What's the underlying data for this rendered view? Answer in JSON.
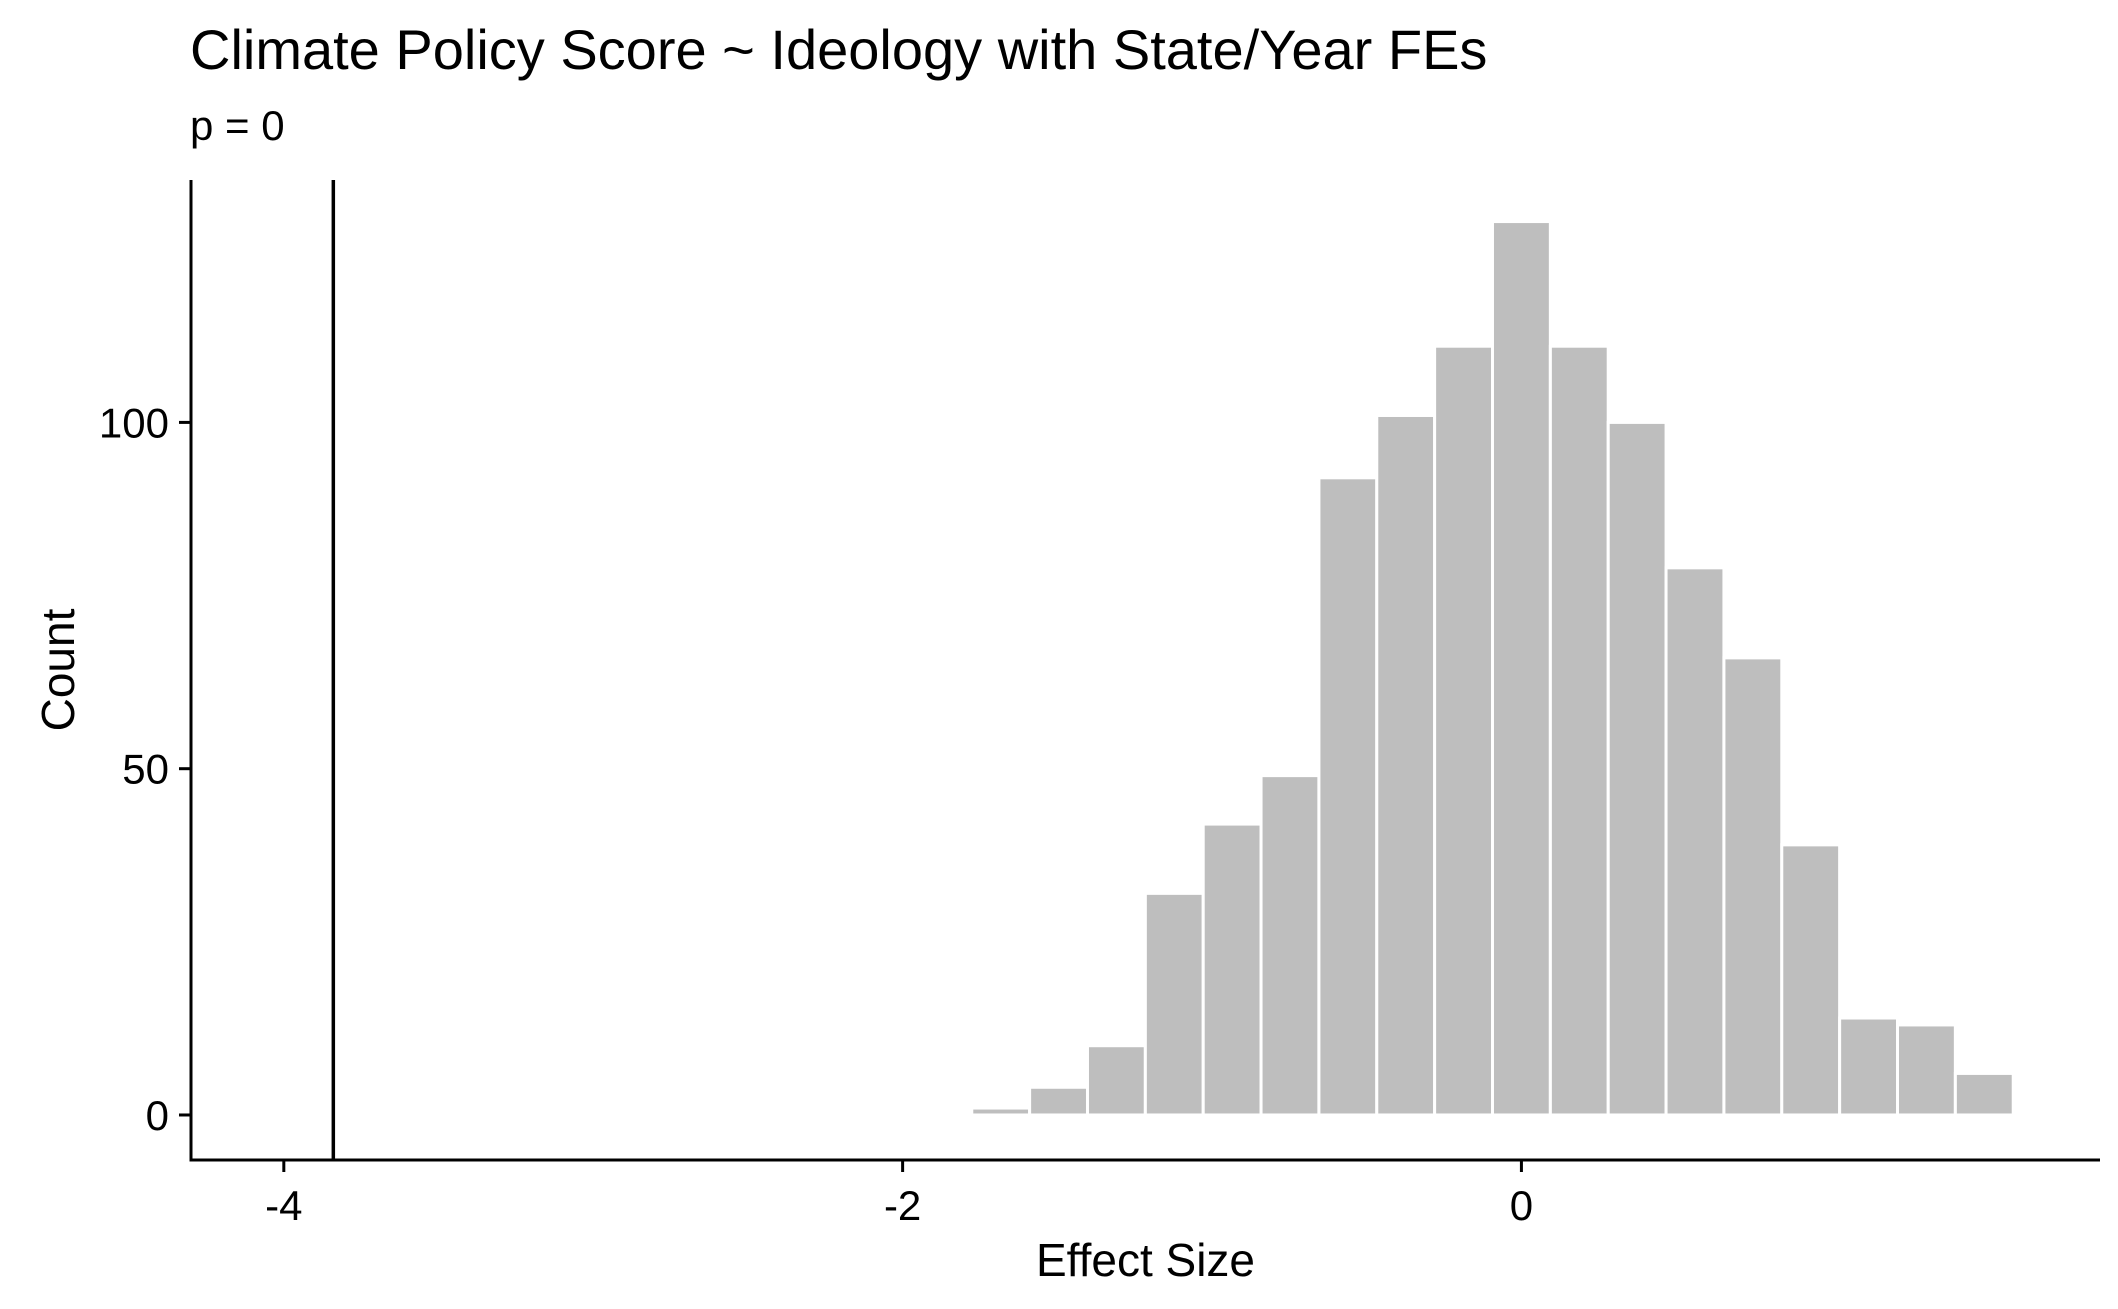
{
  "chart_data": {
    "type": "bar",
    "title": "Climate Policy Score ~ Ideology with State/Year FEs",
    "subtitle": "p = 0",
    "xlabel": "Effect Size",
    "ylabel": "Count",
    "xlim": [
      -4.3,
      1.87
    ],
    "ylim": [
      -6.5,
      135
    ],
    "x_ticks": [
      -4,
      -2,
      0
    ],
    "x_tick_labels": [
      "-4",
      "-2",
      "0"
    ],
    "y_ticks": [
      0,
      50,
      100
    ],
    "y_tick_labels": [
      "0",
      "50",
      "100"
    ],
    "bin_width": 0.187,
    "bin_centers": [
      -1.87,
      -1.683,
      -1.496,
      -1.309,
      -1.122,
      -0.935,
      -0.748,
      -0.561,
      -0.374,
      -0.187,
      0.0,
      0.187,
      0.374,
      0.561,
      0.748,
      0.935,
      1.122,
      1.309,
      1.496
    ],
    "values": [
      0,
      1,
      4,
      10,
      32,
      42,
      49,
      92,
      101,
      111,
      129,
      111,
      100,
      79,
      66,
      39,
      14,
      13,
      6
    ],
    "observed_value": -3.84,
    "grid": false,
    "colors": {
      "bar_fill": "#bebebe",
      "bar_outline": "#ffffff",
      "axis": "#000000",
      "reference_line": "#000000"
    }
  }
}
